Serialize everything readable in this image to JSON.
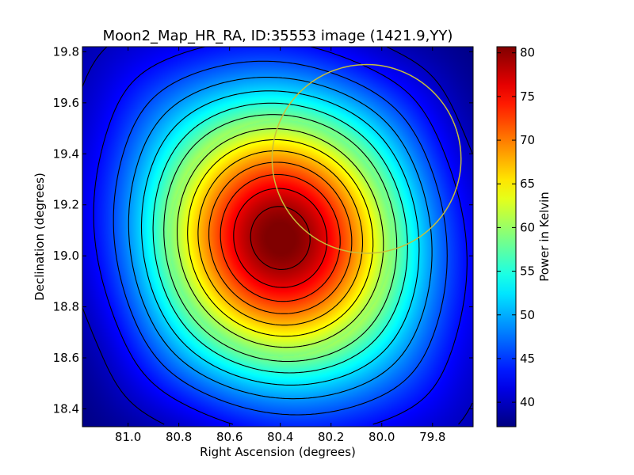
{
  "chart_data": {
    "type": "heatmap",
    "title": "Moon2_Map_HR_RA, ID:35553 image (1421.9,YY)",
    "xlabel": "Right Ascension (degrees)",
    "ylabel": "Declination (degrees)",
    "colorbar_label": "Power in Kelvin",
    "colormap": "jet",
    "x_axis_inverted": true,
    "xlim": [
      81.18,
      79.64
    ],
    "ylim": [
      18.33,
      19.82
    ],
    "xticks": [
      81.0,
      80.8,
      80.6,
      80.4,
      80.2,
      80.0,
      79.8
    ],
    "xtick_labels": [
      "81.0",
      "80.8",
      "80.6",
      "80.4",
      "80.2",
      "80.0",
      "79.8"
    ],
    "yticks": [
      18.4,
      18.6,
      18.8,
      19.0,
      19.2,
      19.4,
      19.6,
      19.8
    ],
    "ytick_labels": [
      "18.4",
      "18.6",
      "18.8",
      "19.0",
      "19.2",
      "19.4",
      "19.6",
      "19.8"
    ],
    "colorbar_range": [
      37.2,
      80.7
    ],
    "colorbar_ticks": [
      40,
      45,
      50,
      55,
      60,
      65,
      70,
      75,
      80
    ],
    "colorbar_tick_labels": [
      "40",
      "45",
      "50",
      "55",
      "60",
      "65",
      "70",
      "75",
      "80"
    ],
    "peak": {
      "ra": 80.4,
      "dec": 19.07,
      "value": 80.5
    },
    "contour_levels": [
      40,
      43,
      46,
      49,
      52,
      55,
      58,
      61,
      64,
      67,
      70,
      73,
      76,
      79
    ],
    "circle": {
      "center_ra": 80.06,
      "center_dec": 19.38,
      "radius_deg": 0.37,
      "color": "#c8bf3a"
    },
    "contour_color": "#000000"
  }
}
